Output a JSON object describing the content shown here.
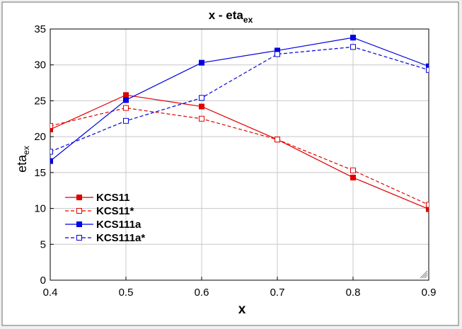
{
  "chart_data": {
    "type": "line",
    "title": "x - eta",
    "title_subscript": "ex",
    "xlabel": "x",
    "ylabel": "eta",
    "ylabel_subscript": "ex",
    "xlim": [
      0.4,
      0.9
    ],
    "ylim": [
      0,
      35
    ],
    "x_ticks": [
      "0.4",
      "0.5",
      "0.6",
      "0.7",
      "0.8",
      "0.9"
    ],
    "y_ticks": [
      "0",
      "5",
      "10",
      "15",
      "20",
      "25",
      "30",
      "35"
    ],
    "grid": true,
    "legend_position": "bottom-left",
    "x": [
      0.4,
      0.5,
      0.6,
      0.7,
      0.8,
      0.9
    ],
    "series": [
      {
        "name": "KCS11",
        "color": "#e00000",
        "dashed": false,
        "filled": true,
        "values": [
          21.0,
          25.8,
          24.2,
          19.6,
          14.3,
          9.9
        ]
      },
      {
        "name": "KCS11*",
        "color": "#e00000",
        "dashed": true,
        "filled": false,
        "values": [
          21.5,
          24.0,
          22.5,
          19.6,
          15.3,
          10.5
        ]
      },
      {
        "name": "KCS111a",
        "color": "#0000e0",
        "dashed": false,
        "filled": true,
        "values": [
          16.6,
          25.1,
          30.3,
          32.0,
          33.8,
          29.8
        ]
      },
      {
        "name": "KCS111a*",
        "color": "#0000e0",
        "dashed": true,
        "filled": false,
        "values": [
          17.9,
          22.2,
          25.4,
          31.5,
          32.5,
          29.3
        ]
      }
    ]
  }
}
